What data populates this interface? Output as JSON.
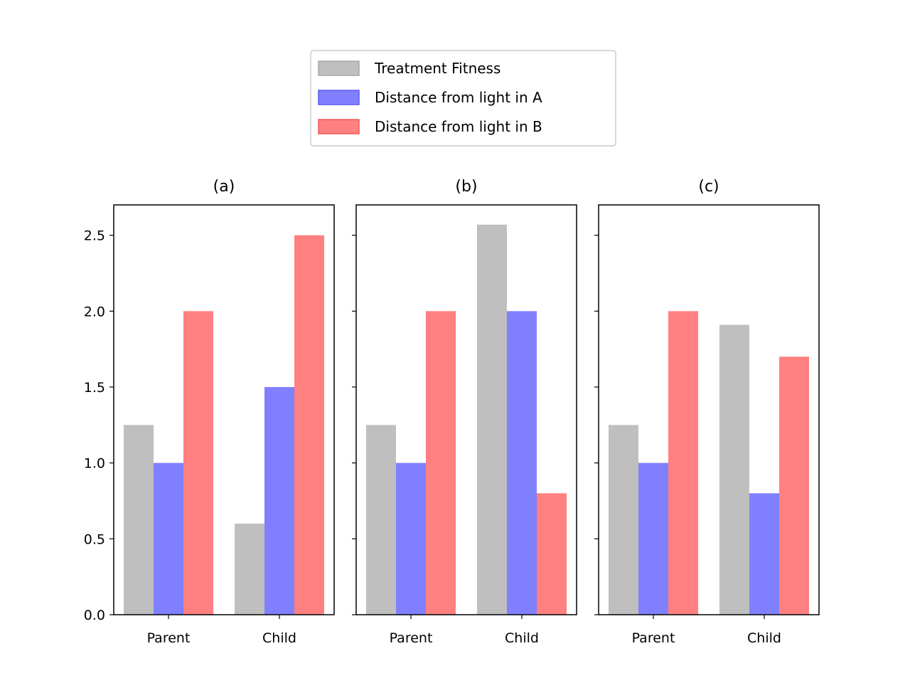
{
  "chart_data": {
    "type": "bar",
    "legend": {
      "placement": "top-center",
      "entries": [
        {
          "label": "Treatment Fitness",
          "color": "#bfbfbf",
          "edge": "#a6a6a6"
        },
        {
          "label": "Distance from light in A",
          "color": "#8080ff",
          "edge": "#5c5cf0"
        },
        {
          "label": "Distance from light in B",
          "color": "#ff8080",
          "edge": "#f05c5c"
        }
      ]
    },
    "categories": [
      "Parent",
      "Child"
    ],
    "ylim": [
      0,
      2.7
    ],
    "yticks": [
      {
        "value": 0.0,
        "label": "0.0"
      },
      {
        "value": 0.5,
        "label": "0.5"
      },
      {
        "value": 1.0,
        "label": "1.0"
      },
      {
        "value": 1.5,
        "label": "1.5"
      },
      {
        "value": 2.0,
        "label": "2.0"
      },
      {
        "value": 2.5,
        "label": "2.5"
      }
    ],
    "grid": false,
    "shared_y": true,
    "panels": [
      {
        "title": "(a)",
        "series": [
          {
            "values": [
              1.25,
              0.6
            ]
          },
          {
            "values": [
              1.0,
              1.5
            ]
          },
          {
            "values": [
              2.0,
              2.5
            ]
          }
        ]
      },
      {
        "title": "(b)",
        "series": [
          {
            "values": [
              1.25,
              2.57
            ]
          },
          {
            "values": [
              1.0,
              2.0
            ]
          },
          {
            "values": [
              2.0,
              0.8
            ]
          }
        ]
      },
      {
        "title": "(c)",
        "series": [
          {
            "values": [
              1.25,
              1.91
            ]
          },
          {
            "values": [
              1.0,
              0.8
            ]
          },
          {
            "values": [
              2.0,
              1.7
            ]
          }
        ]
      }
    ]
  }
}
